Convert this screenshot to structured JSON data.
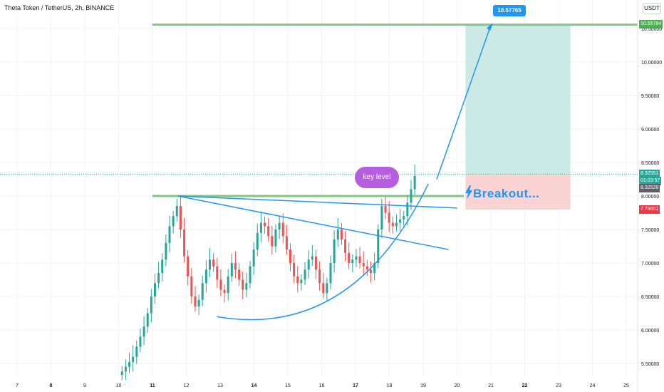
{
  "header": {
    "title": "Theta Token / TetherUS, 2h, BINANCE",
    "currency_label": "USDT"
  },
  "price_axis": {
    "ticks": [
      "10.50000",
      "10.00000",
      "9.50000",
      "9.00000",
      "8.50000",
      "8.00000",
      "7.50000",
      "7.00000",
      "6.50000",
      "6.00000",
      "5.50000"
    ],
    "badges": {
      "target_line": {
        "label": "10.55784",
        "color": "#4caf50"
      },
      "last_price": {
        "label": "8.32551",
        "color": "#26a69a"
      },
      "countdown": {
        "label": "01:03:57",
        "color": "#26a69a"
      },
      "prev_close": {
        "label": "8.32528",
        "color": "#5d606b"
      },
      "stop": {
        "label": "7.79651",
        "color": "#f23645"
      }
    }
  },
  "time_axis": {
    "ticks": [
      "7",
      "8",
      "9",
      "10",
      "11",
      "12",
      "13",
      "14",
      "15",
      "16",
      "17",
      "18",
      "19",
      "20",
      "21",
      "22",
      "23",
      "24",
      "25"
    ],
    "bold": [
      "8",
      "11",
      "14",
      "17",
      "22"
    ]
  },
  "annotations": {
    "target_label": "10.57765",
    "bubble_text": "key level",
    "breakout_text": "Breakout...",
    "icon": "lightning-icon"
  },
  "colors": {
    "up": "#26a69a",
    "down": "#ef5350",
    "trend": "#2196f3",
    "level": "#81c784",
    "profit_zone": "#cbe9e5",
    "loss_zone": "#fbd3d3"
  },
  "chart_data": {
    "type": "candlestick",
    "title": "Theta Token / TetherUS, 2h, BINANCE",
    "series": [
      {
        "name": "",
        "values": [
          5.38,
          5.45,
          5.52,
          5.6,
          5.75,
          5.9,
          6.05,
          6.25,
          6.5,
          6.7,
          6.85,
          7.05,
          7.3,
          7.55,
          7.7,
          7.85,
          7.5,
          7.1,
          6.8,
          6.5,
          6.35,
          6.45,
          6.7,
          6.9,
          7.05,
          6.95,
          6.75,
          6.6,
          6.55,
          6.8,
          7.0,
          6.9,
          6.75,
          6.6,
          6.7,
          6.95,
          7.2,
          7.45,
          7.6,
          7.55,
          7.4,
          7.25,
          7.5,
          7.6,
          7.4,
          7.2,
          7.0,
          6.8,
          6.7,
          6.75,
          6.9,
          7.05,
          7.1,
          6.9,
          6.7,
          6.55,
          6.7,
          7.0,
          7.35,
          7.5,
          7.35,
          7.15,
          7.0,
          7.05,
          7.1,
          7.0,
          6.95,
          6.9,
          6.85,
          7.0,
          7.5,
          7.85,
          7.75,
          7.6,
          7.55,
          7.6,
          7.65,
          7.7,
          7.9,
          8.1,
          8.3
        ]
      }
    ],
    "levels": [
      {
        "label": "10.55784",
        "value": 10.55784
      },
      {
        "label": "key level",
        "value": 8.0
      }
    ],
    "target": 10.57765,
    "entry": 8.32551,
    "stop": 7.79651,
    "ylim": [
      5.35,
      10.65
    ],
    "xlim": [
      "7",
      "25"
    ],
    "grid": true
  }
}
